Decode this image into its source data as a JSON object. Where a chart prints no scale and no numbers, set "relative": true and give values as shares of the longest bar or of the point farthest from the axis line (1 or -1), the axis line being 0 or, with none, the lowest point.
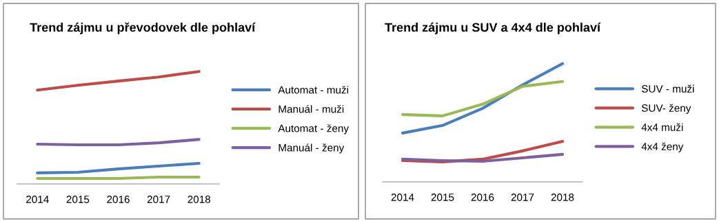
{
  "chart_data": [
    {
      "type": "line",
      "title": "Trend zájmu u převodovek dle pohlaví",
      "relative": true,
      "legend": "right",
      "grid": false,
      "marker": "none",
      "line_style": "solid",
      "categories": [
        "2014",
        "2015",
        "2016",
        "2017",
        "2018"
      ],
      "series": [
        {
          "name": "Automat - muži",
          "color": "#4a7ebb",
          "values": [
            0.098,
            0.104,
            0.134,
            0.159,
            0.183
          ]
        },
        {
          "name": "Manuál - muži",
          "color": "#be4b48",
          "values": [
            0.835,
            0.878,
            0.915,
            0.951,
            1
          ]
        },
        {
          "name": "Automat - ženy",
          "color": "#98b954",
          "values": [
            0.049,
            0.049,
            0.049,
            0.061,
            0.061
          ]
        },
        {
          "name": "Manuál - ženy",
          "color": "#7d60a0",
          "values": [
            0.354,
            0.348,
            0.348,
            0.366,
            0.396
          ]
        }
      ]
    },
    {
      "type": "line",
      "title": "Trend zájmu u SUV a 4x4 dle pohlaví",
      "relative": true,
      "legend": "right",
      "grid": false,
      "marker": "none",
      "line_style": "solid",
      "categories": [
        "2014",
        "2015",
        "2016",
        "2017",
        "2018"
      ],
      "series": [
        {
          "name": "SUV - muži",
          "color": "#4a7ebb",
          "values": [
            0.413,
            0.477,
            0.622,
            0.82,
            1
          ]
        },
        {
          "name": "SUV- ženy",
          "color": "#be4b48",
          "values": [
            0.18,
            0.169,
            0.192,
            0.262,
            0.343
          ]
        },
        {
          "name": "4x4 muži",
          "color": "#98b954",
          "values": [
            0.57,
            0.558,
            0.657,
            0.808,
            0.849
          ]
        },
        {
          "name": "4x4 ženy",
          "color": "#7d60a0",
          "values": [
            0.192,
            0.18,
            0.174,
            0.203,
            0.233
          ]
        }
      ]
    }
  ]
}
